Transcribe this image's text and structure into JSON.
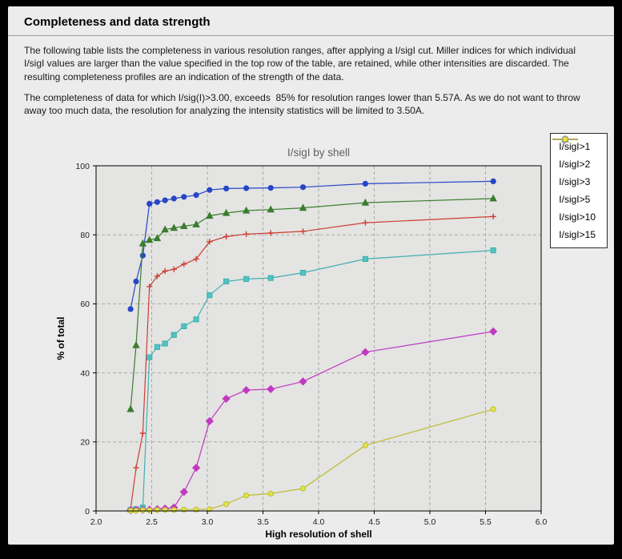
{
  "page": {
    "title": "Completeness and data strength",
    "paragraph1": "The following table lists the completeness in various resolution ranges, after applying a I/sigI cut. Miller indices for which individual I/sigI values are larger than the value specified in the top row of the table, are retained, while other intensities are discarded. The resulting completeness profiles are an indication of the strength of the data.",
    "paragraph2": "The completeness of data for which I/sig(I)>3.00, exceeds  85% for resolution ranges lower than 5.57A. As we do not want to throw away too much data, the resolution for analyzing the intensity statistics will be limited to 3.50A."
  },
  "chart_data": {
    "type": "line",
    "title": "I/sigI by shell",
    "xlabel": "High resolution of shell",
    "ylabel": "% of total",
    "xlim": [
      2.0,
      6.0
    ],
    "ylim": [
      0,
      100
    ],
    "xticks": [
      2.0,
      2.5,
      3.0,
      3.5,
      4.0,
      4.5,
      5.0,
      5.5,
      6.0
    ],
    "xtick_labels": [
      "2.0",
      "2.5",
      "3.0",
      "3.5",
      "4.0",
      "4.5",
      "5.0",
      "5.5",
      "6.0"
    ],
    "yticks": [
      0,
      20,
      40,
      60,
      80,
      100
    ],
    "ytick_labels": [
      "0",
      "20",
      "40",
      "60",
      "80",
      "100"
    ],
    "grid": true,
    "legend_position": "top-right",
    "plot_bg": "#e4e4e2",
    "grid_color": "#a9a9a9",
    "axis_color": "#000000",
    "title_color": "#606060",
    "x": [
      2.31,
      2.36,
      2.42,
      2.48,
      2.55,
      2.62,
      2.7,
      2.79,
      2.9,
      3.02,
      3.17,
      3.35,
      3.57,
      3.86,
      4.42,
      5.57
    ],
    "series": [
      {
        "name": "I/sigI>1",
        "color": "#2746c7",
        "marker": "circle",
        "values": [
          58.5,
          66.5,
          74.0,
          89.0,
          89.5,
          90.0,
          90.5,
          91.0,
          91.5,
          93.0,
          93.4,
          93.5,
          93.6,
          93.8,
          94.8,
          95.5
        ]
      },
      {
        "name": "I/sigI>2",
        "color": "#3b7d2e",
        "marker": "triangle",
        "values": [
          29.5,
          48.0,
          77.5,
          78.5,
          79.0,
          81.5,
          82.0,
          82.5,
          83.0,
          85.5,
          86.3,
          87.0,
          87.3,
          87.8,
          89.3,
          90.5
        ]
      },
      {
        "name": "I/sigI>3",
        "color": "#cd3d33",
        "marker": "plus",
        "values": [
          0.5,
          12.5,
          22.5,
          65.0,
          68.0,
          69.5,
          70.0,
          71.5,
          73.0,
          78.0,
          79.5,
          80.2,
          80.5,
          81.0,
          83.5,
          85.3
        ]
      },
      {
        "name": "I/sigI>5",
        "color": "#3fb0b0",
        "marker": "square",
        "marker_fill": "#52c2c2",
        "values": [
          0.3,
          0.5,
          1.0,
          44.5,
          47.5,
          48.5,
          51.0,
          53.5,
          55.5,
          62.5,
          66.5,
          67.2,
          67.5,
          69.0,
          73.0,
          75.5
        ]
      },
      {
        "name": "I/sigI>10",
        "color": "#c139c1",
        "marker": "diamond",
        "values": [
          0.2,
          0.3,
          0.3,
          0.4,
          0.5,
          0.7,
          1.0,
          5.5,
          12.5,
          26.0,
          32.5,
          35.0,
          35.3,
          37.5,
          46.0,
          52.0
        ]
      },
      {
        "name": "I/sigI>15",
        "color": "#bcbc30",
        "marker": "circle",
        "marker_fill": "#e4e44a",
        "values": [
          0.1,
          0.1,
          0.2,
          0.2,
          0.3,
          0.3,
          0.3,
          0.4,
          0.4,
          0.5,
          2.0,
          4.5,
          5.0,
          6.5,
          19.0,
          29.5
        ]
      }
    ]
  }
}
